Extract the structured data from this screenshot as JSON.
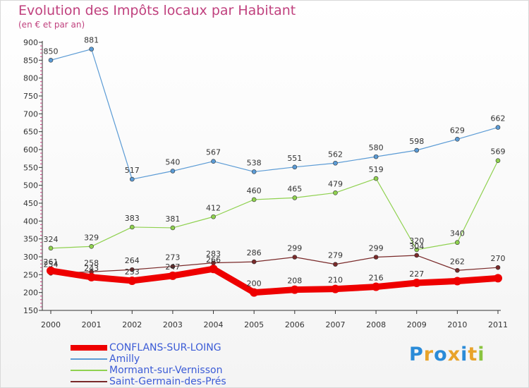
{
  "title": "Evolution des Impôts locaux par Habitant",
  "subtitle": "(en € et par an)",
  "logo": {
    "text": "Proxiti",
    "colors": [
      "#2a8bd8",
      "#e8a32a",
      "#2a8bd8",
      "#e8a32a",
      "#2a8bd8",
      "#e8a32a",
      "#8ac43f"
    ]
  },
  "chart_data": {
    "type": "line",
    "title": "Evolution des Impôts locaux par Habitant",
    "subtitle": "(en € et par an)",
    "x": [
      "2000",
      "2001",
      "2002",
      "2003",
      "2004",
      "2005",
      "2006",
      "2007",
      "2008",
      "2009",
      "2010",
      "2011"
    ],
    "ylim": [
      150,
      900
    ],
    "yticks": [
      150,
      200,
      250,
      300,
      350,
      400,
      450,
      500,
      550,
      600,
      650,
      700,
      750,
      800,
      850,
      900
    ],
    "grid": false,
    "legend": "bottom-left",
    "series": [
      {
        "name": "CONFLANS-SUR-LOING",
        "color": "#ee0000",
        "width": 9,
        "marker": 6,
        "values": [
          261,
          243,
          233,
          247,
          266,
          200,
          208,
          210,
          216,
          227,
          232,
          240
        ],
        "labels": [
          "261",
          "243",
          "233",
          "247",
          "266",
          "200",
          "208",
          "210",
          "216",
          "227",
          "",
          ""
        ]
      },
      {
        "name": "Amilly",
        "color": "#5b9bd5",
        "width": 1.2,
        "marker": 3,
        "values": [
          850,
          881,
          517,
          540,
          567,
          538,
          551,
          562,
          580,
          598,
          629,
          662
        ],
        "labels": [
          "850",
          "881",
          "517",
          "540",
          "567",
          "538",
          "551",
          "562",
          "580",
          "598",
          "629",
          "662"
        ]
      },
      {
        "name": "Mormant-sur-Vernisson",
        "color": "#8fd14f",
        "width": 1.2,
        "marker": 3,
        "values": [
          324,
          329,
          383,
          381,
          412,
          460,
          465,
          479,
          519,
          320,
          340,
          569
        ],
        "labels": [
          "324",
          "329",
          "383",
          "381",
          "412",
          "460",
          "465",
          "479",
          "519",
          "320",
          "340",
          "569"
        ]
      },
      {
        "name": "Saint-Germain-des-Prés",
        "color": "#7a2a2a",
        "width": 1.2,
        "marker": 3,
        "values": [
          254,
          258,
          264,
          273,
          283,
          286,
          299,
          279,
          299,
          304,
          262,
          270
        ],
        "labels": [
          "254",
          "258",
          "264",
          "273",
          "283",
          "286",
          "299",
          "279",
          "299",
          "304",
          "262",
          "270"
        ]
      }
    ]
  }
}
